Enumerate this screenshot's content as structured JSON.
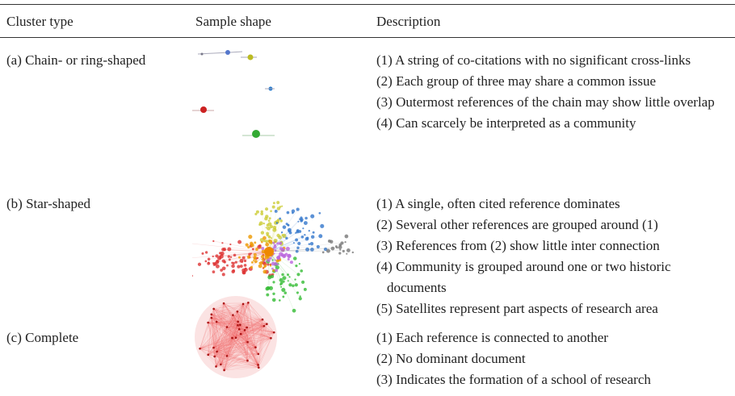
{
  "table": {
    "header": [
      "Cluster type",
      "Sample shape",
      "Description"
    ],
    "rows": [
      {
        "type": "(a) Chain- or ring-shaped",
        "items": [
          "(1) A string of co-citations with no significant cross-links",
          "(2) Each group of three may share a common issue",
          "(3) Outermost references of the chain may show little overlap",
          "(4) Can scarcely be interpreted as a community"
        ]
      },
      {
        "type": "(b) Star-shaped",
        "items": [
          "(1) A single, often cited reference dominates",
          "(2) Several other references are grouped around (1)",
          "(3) References from (2) show little inter connection",
          "(4) Community is grouped around one or two historic documents",
          "(5) Satellites represent part aspects of research area"
        ]
      },
      {
        "type": "(c) Complete",
        "items": [
          "(1) Each reference is connected to another",
          "(2) No dominant document",
          "(3) Indicates the formation of a school of research"
        ]
      }
    ]
  }
}
